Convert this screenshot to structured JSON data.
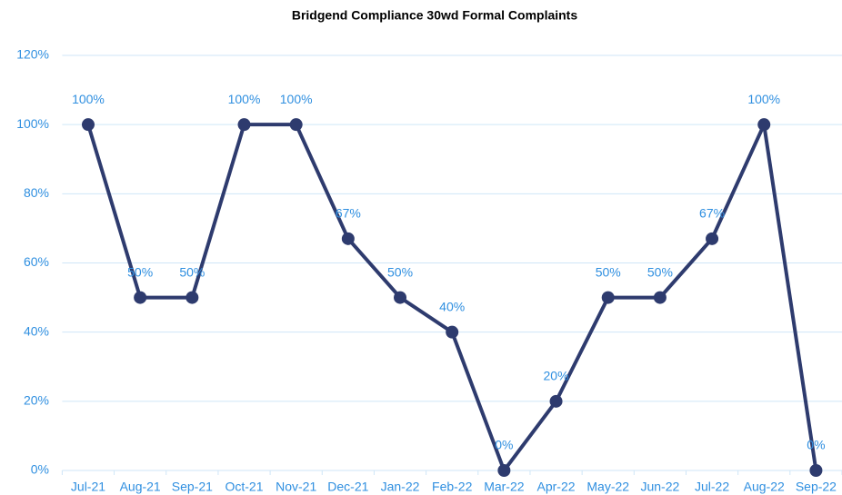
{
  "chart_data": {
    "type": "line",
    "title": "Bridgend Compliance 30wd Formal Complaints",
    "categories": [
      "Jul-21",
      "Aug-21",
      "Sep-21",
      "Oct-21",
      "Nov-21",
      "Dec-21",
      "Jan-22",
      "Feb-22",
      "Mar-22",
      "Apr-22",
      "May-22",
      "Jun-22",
      "Jul-22",
      "Aug-22",
      "Sep-22"
    ],
    "values": [
      100,
      50,
      50,
      100,
      100,
      67,
      50,
      40,
      0,
      20,
      50,
      50,
      67,
      100,
      0
    ],
    "value_labels": [
      "100%",
      "50%",
      "50%",
      "100%",
      "100%",
      "67%",
      "50%",
      "40%",
      "0%",
      "20%",
      "50%",
      "50%",
      "67%",
      "100%",
      "0%"
    ],
    "color": "#2e3b6e",
    "ylim": [
      0,
      120
    ],
    "yticks": [
      {
        "value": 0,
        "label": "0%"
      },
      {
        "value": 20,
        "label": "20%"
      },
      {
        "value": 40,
        "label": "40%"
      },
      {
        "value": 60,
        "label": "60%"
      },
      {
        "value": 80,
        "label": "80%"
      },
      {
        "value": 100,
        "label": "100%"
      },
      {
        "value": 120,
        "label": "120%"
      }
    ],
    "grid": true
  }
}
